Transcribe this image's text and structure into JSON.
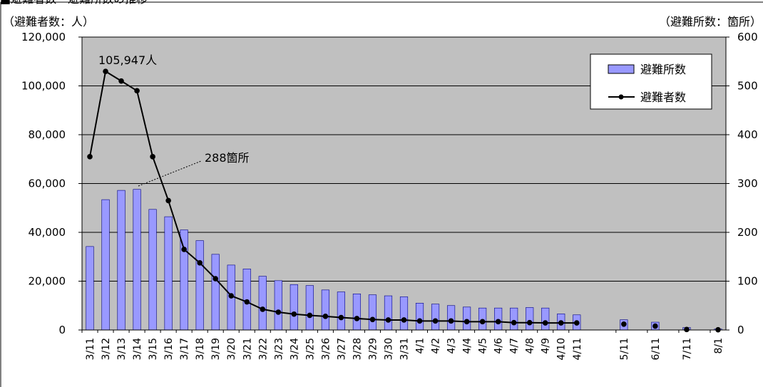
{
  "header": {
    "title": "■避難者数・避難所数の推移",
    "left_unit": "（避難者数：人）",
    "right_unit": "（避難所数：箇所）"
  },
  "annotations": {
    "peak_evacuees": "105,947人",
    "peak_shelters": "288箇所"
  },
  "colors": {
    "plot_bg": "#c0c0c0",
    "bar_fill": "#9999ff",
    "bar_stroke": "#000080",
    "line": "#000000"
  },
  "chart_data": {
    "type": "bar+line",
    "categories": [
      "3/11",
      "3/12",
      "3/13",
      "3/14",
      "3/15",
      "3/16",
      "3/17",
      "3/18",
      "3/19",
      "3/20",
      "3/21",
      "3/22",
      "3/23",
      "3/24",
      "3/25",
      "3/26",
      "3/27",
      "3/28",
      "3/29",
      "3/30",
      "3/31",
      "4/1",
      "4/2",
      "4/3",
      "4/4",
      "4/5",
      "4/6",
      "4/7",
      "4/8",
      "4/9",
      "4/10",
      "4/11",
      "",
      "",
      "5/11",
      "",
      "6/11",
      "",
      "7/11",
      "",
      "8/1"
    ],
    "series": [
      {
        "name": "避難所数",
        "type": "bar",
        "axis": "right",
        "values": [
          171,
          267,
          286,
          288,
          247,
          232,
          205,
          183,
          155,
          133,
          125,
          110,
          101,
          93,
          91,
          82,
          78,
          74,
          72,
          70,
          68,
          55,
          53,
          50,
          47,
          45,
          45,
          45,
          46,
          45,
          33,
          31,
          null,
          null,
          21,
          null,
          16,
          null,
          5,
          null,
          2
        ]
      },
      {
        "name": "避難者数",
        "type": "line",
        "axis": "left",
        "values": [
          71000,
          105947,
          102000,
          98000,
          71000,
          53000,
          33000,
          27500,
          21000,
          14000,
          11500,
          8500,
          7300,
          6500,
          6000,
          5600,
          5100,
          4700,
          4300,
          4100,
          4100,
          3700,
          3700,
          3700,
          3400,
          3400,
          3400,
          3000,
          3000,
          2900,
          2900,
          2900,
          null,
          null,
          2400,
          null,
          1600,
          null,
          200,
          null,
          100
        ]
      }
    ],
    "ylim_left": [
      0,
      120000
    ],
    "ylim_right": [
      0,
      600
    ],
    "yticks_left": [
      "0",
      "20,000",
      "40,000",
      "60,000",
      "80,000",
      "100,000",
      "120,000"
    ],
    "yticks_right": [
      "0",
      "100",
      "200",
      "300",
      "400",
      "500",
      "600"
    ],
    "grid": true,
    "legend_position": "top-right"
  }
}
